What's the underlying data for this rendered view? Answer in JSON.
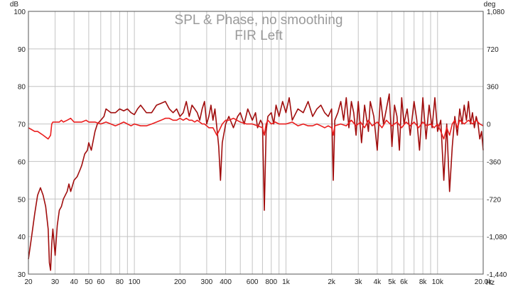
{
  "chart_data": {
    "type": "line",
    "title": "SPL & Phase, no smoothing",
    "subtitle": "FIR Left",
    "x_scale": "log",
    "xlim": [
      20,
      20000
    ],
    "ylim_left": [
      30,
      100
    ],
    "ylim_right": [
      -1440,
      1080
    ],
    "left_unit": "dB",
    "right_unit": "deg",
    "x_unit": "Hz",
    "grid": true,
    "x_ticks": [
      {
        "v": 20,
        "label": "20"
      },
      {
        "v": 30,
        "label": "30"
      },
      {
        "v": 40,
        "label": "40"
      },
      {
        "v": 50,
        "label": "50"
      },
      {
        "v": 60,
        "label": "60"
      },
      {
        "v": 80,
        "label": "80"
      },
      {
        "v": 100,
        "label": "100"
      },
      {
        "v": 200,
        "label": "200"
      },
      {
        "v": 300,
        "label": "300"
      },
      {
        "v": 400,
        "label": "400"
      },
      {
        "v": 600,
        "label": "600"
      },
      {
        "v": 800,
        "label": "800"
      },
      {
        "v": 1000,
        "label": "1k"
      },
      {
        "v": 2000,
        "label": "2k"
      },
      {
        "v": 3000,
        "label": "3k"
      },
      {
        "v": 4000,
        "label": "4k"
      },
      {
        "v": 5000,
        "label": "5k"
      },
      {
        "v": 6000,
        "label": "6k"
      },
      {
        "v": 8000,
        "label": "8k"
      },
      {
        "v": 10000,
        "label": "10k"
      },
      {
        "v": 20000,
        "label": "20.0k"
      }
    ],
    "y_ticks_left": [
      {
        "v": 30,
        "label": "30"
      },
      {
        "v": 40,
        "label": "40"
      },
      {
        "v": 50,
        "label": "50"
      },
      {
        "v": 60,
        "label": "60"
      },
      {
        "v": 70,
        "label": "70"
      },
      {
        "v": 80,
        "label": "80"
      },
      {
        "v": 90,
        "label": "90"
      },
      {
        "v": 100,
        "label": "100"
      }
    ],
    "y_ticks_right": [
      {
        "v": 1080,
        "label": "1,080"
      },
      {
        "v": 720,
        "label": "720"
      },
      {
        "v": 360,
        "label": "360"
      },
      {
        "v": 0,
        "label": "0"
      },
      {
        "v": -360,
        "label": "-360"
      },
      {
        "v": -720,
        "label": "-720"
      },
      {
        "v": -1080,
        "label": "-1,080"
      },
      {
        "v": -1440,
        "label": "-1,440"
      }
    ],
    "series": [
      {
        "color": "#a00d0d",
        "axis": "left",
        "points": [
          [
            20,
            34
          ],
          [
            21,
            40
          ],
          [
            22,
            46
          ],
          [
            23,
            51
          ],
          [
            24,
            53
          ],
          [
            25,
            51
          ],
          [
            26,
            48
          ],
          [
            27,
            42
          ],
          [
            27.5,
            33
          ],
          [
            28,
            31
          ],
          [
            28.5,
            38
          ],
          [
            29,
            42
          ],
          [
            30,
            35
          ],
          [
            31,
            43
          ],
          [
            32,
            47
          ],
          [
            33,
            48
          ],
          [
            34,
            50
          ],
          [
            36,
            52
          ],
          [
            37,
            54
          ],
          [
            38,
            52
          ],
          [
            40,
            55
          ],
          [
            42,
            56
          ],
          [
            44,
            58
          ],
          [
            45,
            59
          ],
          [
            47,
            62
          ],
          [
            49,
            63
          ],
          [
            50,
            65
          ],
          [
            52,
            63
          ],
          [
            55,
            68
          ],
          [
            57,
            70
          ],
          [
            60,
            71
          ],
          [
            63,
            72
          ],
          [
            65,
            74
          ],
          [
            70,
            73
          ],
          [
            75,
            73
          ],
          [
            80,
            74
          ],
          [
            85,
            73.5
          ],
          [
            90,
            74
          ],
          [
            95,
            73
          ],
          [
            100,
            72.5
          ],
          [
            105,
            74
          ],
          [
            110,
            75
          ],
          [
            120,
            73
          ],
          [
            130,
            73
          ],
          [
            140,
            75
          ],
          [
            150,
            75.5
          ],
          [
            160,
            76
          ],
          [
            170,
            74
          ],
          [
            180,
            73
          ],
          [
            190,
            74
          ],
          [
            200,
            72
          ],
          [
            210,
            73
          ],
          [
            220,
            76
          ],
          [
            230,
            72
          ],
          [
            240,
            75
          ],
          [
            250,
            74
          ],
          [
            260,
            73
          ],
          [
            270,
            71
          ],
          [
            280,
            74
          ],
          [
            290,
            76
          ],
          [
            300,
            70
          ],
          [
            310,
            72
          ],
          [
            320,
            75
          ],
          [
            330,
            71
          ],
          [
            340,
            74
          ],
          [
            350,
            69
          ],
          [
            360,
            64
          ],
          [
            370,
            55
          ],
          [
            380,
            65
          ],
          [
            400,
            70
          ],
          [
            420,
            72
          ],
          [
            450,
            69
          ],
          [
            480,
            72
          ],
          [
            500,
            73
          ],
          [
            530,
            70
          ],
          [
            560,
            74
          ],
          [
            600,
            71
          ],
          [
            630,
            73
          ],
          [
            650,
            69
          ],
          [
            680,
            71
          ],
          [
            700,
            70
          ],
          [
            720,
            47
          ],
          [
            740,
            68
          ],
          [
            760,
            72
          ],
          [
            800,
            73
          ],
          [
            830,
            70
          ],
          [
            860,
            75
          ],
          [
            900,
            72
          ],
          [
            950,
            76
          ],
          [
            1000,
            73
          ],
          [
            1050,
            77
          ],
          [
            1100,
            71
          ],
          [
            1200,
            74
          ],
          [
            1300,
            73
          ],
          [
            1400,
            76
          ],
          [
            1500,
            72
          ],
          [
            1600,
            74
          ],
          [
            1700,
            75
          ],
          [
            1800,
            73
          ],
          [
            1900,
            72
          ],
          [
            2000,
            74
          ],
          [
            2050,
            55
          ],
          [
            2100,
            71
          ],
          [
            2200,
            73
          ],
          [
            2300,
            76
          ],
          [
            2400,
            71
          ],
          [
            2500,
            77
          ],
          [
            2600,
            69
          ],
          [
            2700,
            76
          ],
          [
            2800,
            73
          ],
          [
            2900,
            67
          ],
          [
            3000,
            76
          ],
          [
            3150,
            65
          ],
          [
            3300,
            75
          ],
          [
            3500,
            68
          ],
          [
            3600,
            76
          ],
          [
            3800,
            72
          ],
          [
            4000,
            63
          ],
          [
            4200,
            77
          ],
          [
            4400,
            70
          ],
          [
            4600,
            74
          ],
          [
            4800,
            78
          ],
          [
            5000,
            64
          ],
          [
            5200,
            75
          ],
          [
            5400,
            72
          ],
          [
            5600,
            63
          ],
          [
            5800,
            77
          ],
          [
            6000,
            70
          ],
          [
            6300,
            74
          ],
          [
            6600,
            67
          ],
          [
            7000,
            76
          ],
          [
            7300,
            71
          ],
          [
            7600,
            63
          ],
          [
            8000,
            77
          ],
          [
            8400,
            66
          ],
          [
            8800,
            75
          ],
          [
            9200,
            69
          ],
          [
            9600,
            77
          ],
          [
            10000,
            68
          ],
          [
            10500,
            71
          ],
          [
            11000,
            55
          ],
          [
            11500,
            70
          ],
          [
            12000,
            52
          ],
          [
            12500,
            64
          ],
          [
            13000,
            72
          ],
          [
            13500,
            67
          ],
          [
            14000,
            74
          ],
          [
            14500,
            70
          ],
          [
            15000,
            75
          ],
          [
            15500,
            71
          ],
          [
            16000,
            76
          ],
          [
            16500,
            70
          ],
          [
            17000,
            73
          ],
          [
            17500,
            69
          ],
          [
            18000,
            72
          ],
          [
            18500,
            70
          ],
          [
            19000,
            66
          ],
          [
            19500,
            68
          ],
          [
            20000,
            63
          ]
        ]
      },
      {
        "color": "#ea1e1e",
        "axis": "left",
        "points": [
          [
            20,
            69
          ],
          [
            21,
            68.5
          ],
          [
            22,
            68
          ],
          [
            23,
            68
          ],
          [
            24,
            67.5
          ],
          [
            25,
            67
          ],
          [
            26,
            66.5
          ],
          [
            27,
            66
          ],
          [
            28,
            67
          ],
          [
            28.5,
            70
          ],
          [
            29,
            70.5
          ],
          [
            30,
            70.5
          ],
          [
            31,
            70.5
          ],
          [
            32,
            70.5
          ],
          [
            33,
            71
          ],
          [
            34,
            70.5
          ],
          [
            36,
            71
          ],
          [
            38,
            71.5
          ],
          [
            40,
            70.5
          ],
          [
            42,
            70.5
          ],
          [
            45,
            70.5
          ],
          [
            48,
            71
          ],
          [
            50,
            70.5
          ],
          [
            55,
            70.5
          ],
          [
            60,
            70
          ],
          [
            65,
            70.5
          ],
          [
            70,
            70
          ],
          [
            75,
            69.5
          ],
          [
            80,
            70
          ],
          [
            85,
            70.5
          ],
          [
            90,
            70
          ],
          [
            95,
            69.5
          ],
          [
            100,
            70
          ],
          [
            110,
            69.5
          ],
          [
            120,
            69.5
          ],
          [
            130,
            70
          ],
          [
            140,
            70.5
          ],
          [
            150,
            71
          ],
          [
            160,
            71.5
          ],
          [
            170,
            71.5
          ],
          [
            180,
            71
          ],
          [
            190,
            71
          ],
          [
            200,
            71.5
          ],
          [
            210,
            71
          ],
          [
            220,
            71.5
          ],
          [
            230,
            71
          ],
          [
            240,
            71
          ],
          [
            250,
            70.5
          ],
          [
            260,
            71
          ],
          [
            270,
            70.5
          ],
          [
            280,
            70
          ],
          [
            290,
            70
          ],
          [
            300,
            69.5
          ],
          [
            310,
            69
          ],
          [
            320,
            69
          ],
          [
            330,
            69
          ],
          [
            340,
            68
          ],
          [
            350,
            67
          ],
          [
            360,
            68
          ],
          [
            370,
            69
          ],
          [
            380,
            70
          ],
          [
            400,
            71
          ],
          [
            420,
            71
          ],
          [
            450,
            71.5
          ],
          [
            500,
            70.5
          ],
          [
            550,
            70
          ],
          [
            600,
            70
          ],
          [
            650,
            69.5
          ],
          [
            700,
            69
          ],
          [
            720,
            67
          ],
          [
            740,
            70
          ],
          [
            760,
            71
          ],
          [
            800,
            70
          ],
          [
            850,
            70.5
          ],
          [
            900,
            70
          ],
          [
            1000,
            70
          ],
          [
            1100,
            70.5
          ],
          [
            1200,
            69.5
          ],
          [
            1300,
            70
          ],
          [
            1400,
            69.5
          ],
          [
            1500,
            69.5
          ],
          [
            1600,
            70
          ],
          [
            1700,
            69.5
          ],
          [
            1800,
            69
          ],
          [
            1900,
            69.5
          ],
          [
            2000,
            69
          ],
          [
            2050,
            67
          ],
          [
            2100,
            69.5
          ],
          [
            2300,
            70
          ],
          [
            2500,
            69.5
          ],
          [
            2700,
            71
          ],
          [
            2900,
            69.5
          ],
          [
            3100,
            70.5
          ],
          [
            3300,
            69
          ],
          [
            3500,
            71
          ],
          [
            3700,
            69.5
          ],
          [
            4000,
            70.5
          ],
          [
            4300,
            69
          ],
          [
            4600,
            71
          ],
          [
            5000,
            69.5
          ],
          [
            5400,
            70.5
          ],
          [
            5800,
            69
          ],
          [
            6200,
            70.5
          ],
          [
            6600,
            69.5
          ],
          [
            7000,
            70.5
          ],
          [
            7500,
            69
          ],
          [
            8000,
            70.5
          ],
          [
            8500,
            69.5
          ],
          [
            9000,
            70
          ],
          [
            9500,
            69
          ],
          [
            10000,
            70
          ],
          [
            10500,
            68
          ],
          [
            11000,
            66
          ],
          [
            11500,
            69
          ],
          [
            12000,
            67
          ],
          [
            12500,
            70
          ],
          [
            13000,
            71
          ],
          [
            13500,
            69
          ],
          [
            14000,
            71
          ],
          [
            15000,
            70
          ],
          [
            16000,
            71
          ],
          [
            17000,
            70
          ],
          [
            18000,
            71
          ],
          [
            19000,
            70
          ],
          [
            20000,
            69.5
          ]
        ]
      }
    ]
  }
}
